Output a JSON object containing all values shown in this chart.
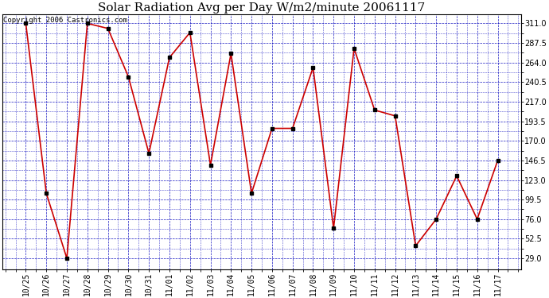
{
  "title": "Solar Radiation Avg per Day W/m2/minute 20061117",
  "copyright_text": "Copyright 2006 Castronics.com",
  "dates": [
    "10/25",
    "10/26",
    "10/27",
    "10/28",
    "10/29",
    "10/30",
    "10/31",
    "11/01",
    "11/02",
    "11/03",
    "11/04",
    "11/05",
    "11/06",
    "11/07",
    "11/08",
    "11/09",
    "11/10",
    "11/11",
    "11/12",
    "11/13",
    "11/14",
    "11/15",
    "11/16",
    "11/17"
  ],
  "values": [
    311.0,
    107.0,
    29.0,
    311.0,
    305.0,
    247.0,
    155.0,
    270.0,
    300.0,
    141.0,
    275.0,
    107.0,
    185.0,
    185.0,
    258.0,
    65.0,
    281.0,
    207.0,
    200.0,
    44.0,
    76.0,
    128.0,
    76.0,
    146.5
  ],
  "line_color": "#cc0000",
  "marker_color": "#000000",
  "bg_color": "#ffffff",
  "plot_bg_color": "#ffffff",
  "grid_color": "#0000bb",
  "title_color": "#000000",
  "yticks": [
    29.0,
    52.5,
    76.0,
    99.5,
    123.0,
    146.5,
    170.0,
    193.5,
    217.0,
    240.5,
    264.0,
    287.5,
    311.0
  ],
  "ylim": [
    16.0,
    322.0
  ],
  "title_fontsize": 11,
  "copyright_fontsize": 6.5,
  "tick_fontsize": 7,
  "ytick_fontsize": 7
}
